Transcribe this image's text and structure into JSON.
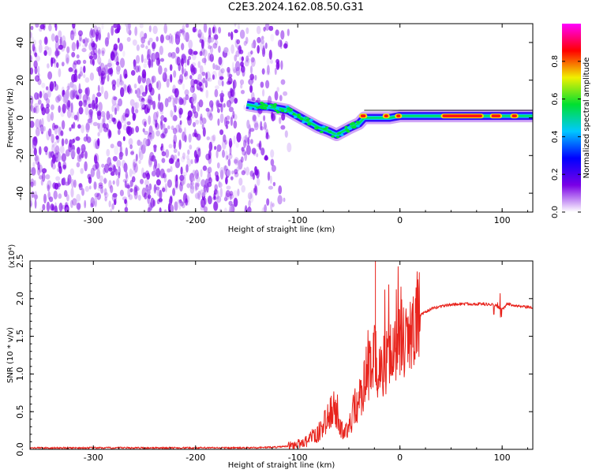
{
  "title": "C2E3.2024.162.08.50.G31",
  "chart_data": [
    {
      "type": "heatmap",
      "xlabel": "Height of straight line (km)",
      "ylabel": "Frequency (Hz)",
      "xlim": [
        -362,
        130
      ],
      "ylim": [
        -50,
        50
      ],
      "x_ticks": [
        -300,
        -200,
        -100,
        0,
        100
      ],
      "x_tick_labels": [
        "-300",
        "-200",
        "-100",
        "0",
        "100"
      ],
      "y_ticks": [
        -40,
        -20,
        0,
        20,
        40
      ],
      "y_tick_labels": [
        "-40",
        "-20",
        "0",
        "20",
        "40"
      ],
      "colorbar": {
        "label": "Normalized spectral amplitude",
        "range": [
          0,
          1
        ],
        "ticks": [
          0.0,
          0.2,
          0.4,
          0.6,
          0.8
        ],
        "tick_labels": [
          "0.0",
          "0.2",
          "0.4",
          "0.6",
          "0.8"
        ],
        "colormap": [
          "#ffffff",
          "#7a00e6",
          "#0000ff",
          "#00c8ff",
          "#00e030",
          "#f0f000",
          "#ff0000",
          "#ff00ff"
        ]
      },
      "noise_region": {
        "x": [
          -362,
          -110
        ],
        "y": [
          -50,
          50
        ]
      },
      "ridge": [
        {
          "x": -150,
          "y": 7
        },
        {
          "x": -140,
          "y": 6
        },
        {
          "x": -130,
          "y": 6
        },
        {
          "x": -120,
          "y": 5
        },
        {
          "x": -110,
          "y": 4
        },
        {
          "x": -100,
          "y": 1
        },
        {
          "x": -90,
          "y": -2
        },
        {
          "x": -80,
          "y": -5
        },
        {
          "x": -70,
          "y": -7
        },
        {
          "x": -62,
          "y": -9
        },
        {
          "x": -55,
          "y": -7
        },
        {
          "x": -48,
          "y": -5
        },
        {
          "x": -40,
          "y": -3
        },
        {
          "x": -35,
          "y": 0
        },
        {
          "x": -30,
          "y": 0
        },
        {
          "x": -20,
          "y": 0
        },
        {
          "x": -10,
          "y": 0
        },
        {
          "x": 0,
          "y": 1
        },
        {
          "x": 20,
          "y": 1
        },
        {
          "x": 40,
          "y": 1
        },
        {
          "x": 60,
          "y": 1
        },
        {
          "x": 80,
          "y": 1
        },
        {
          "x": 100,
          "y": 1
        },
        {
          "x": 120,
          "y": 1
        },
        {
          "x": 130,
          "y": 1
        }
      ]
    },
    {
      "type": "line",
      "xlabel": "Height of straight line (km)",
      "ylabel": "SNR (10 * v/v)",
      "y_multiplier": "(x10⁴)",
      "xlim": [
        -362,
        130
      ],
      "ylim": [
        0,
        2.5
      ],
      "x_ticks": [
        -300,
        -200,
        -100,
        0,
        100
      ],
      "x_tick_labels": [
        "-300",
        "-200",
        "-100",
        "0",
        "100"
      ],
      "y_ticks": [
        0.0,
        0.5,
        1.0,
        1.5,
        2.0,
        2.5
      ],
      "y_tick_labels": [
        "0.0",
        "0.5",
        "1.0",
        "1.5",
        "2.0",
        "2.5"
      ],
      "series": [
        {
          "color": "#e8231c",
          "x": [
            -362,
            -300,
            -200,
            -150,
            -120,
            -110,
            -100,
            -90,
            -80,
            -75,
            -70,
            -65,
            -60,
            -55,
            -50,
            -45,
            -40,
            -35,
            -30,
            -25,
            -20,
            -15,
            -10,
            -5,
            0,
            5,
            10,
            20,
            30,
            40,
            50,
            60,
            70,
            80,
            90,
            95,
            100,
            105,
            110,
            115,
            120,
            130
          ],
          "values": [
            0.02,
            0.02,
            0.02,
            0.02,
            0.03,
            0.04,
            0.07,
            0.12,
            0.2,
            0.3,
            0.45,
            0.55,
            0.35,
            0.2,
            0.3,
            0.5,
            0.65,
            0.85,
            1.05,
            1.2,
            1.05,
            1.1,
            1.2,
            1.3,
            1.42,
            1.55,
            1.65,
            1.78,
            1.86,
            1.9,
            1.92,
            1.93,
            1.93,
            1.93,
            1.92,
            1.9,
            1.85,
            1.93,
            1.92,
            1.9,
            1.89,
            1.88
          ]
        }
      ]
    }
  ]
}
